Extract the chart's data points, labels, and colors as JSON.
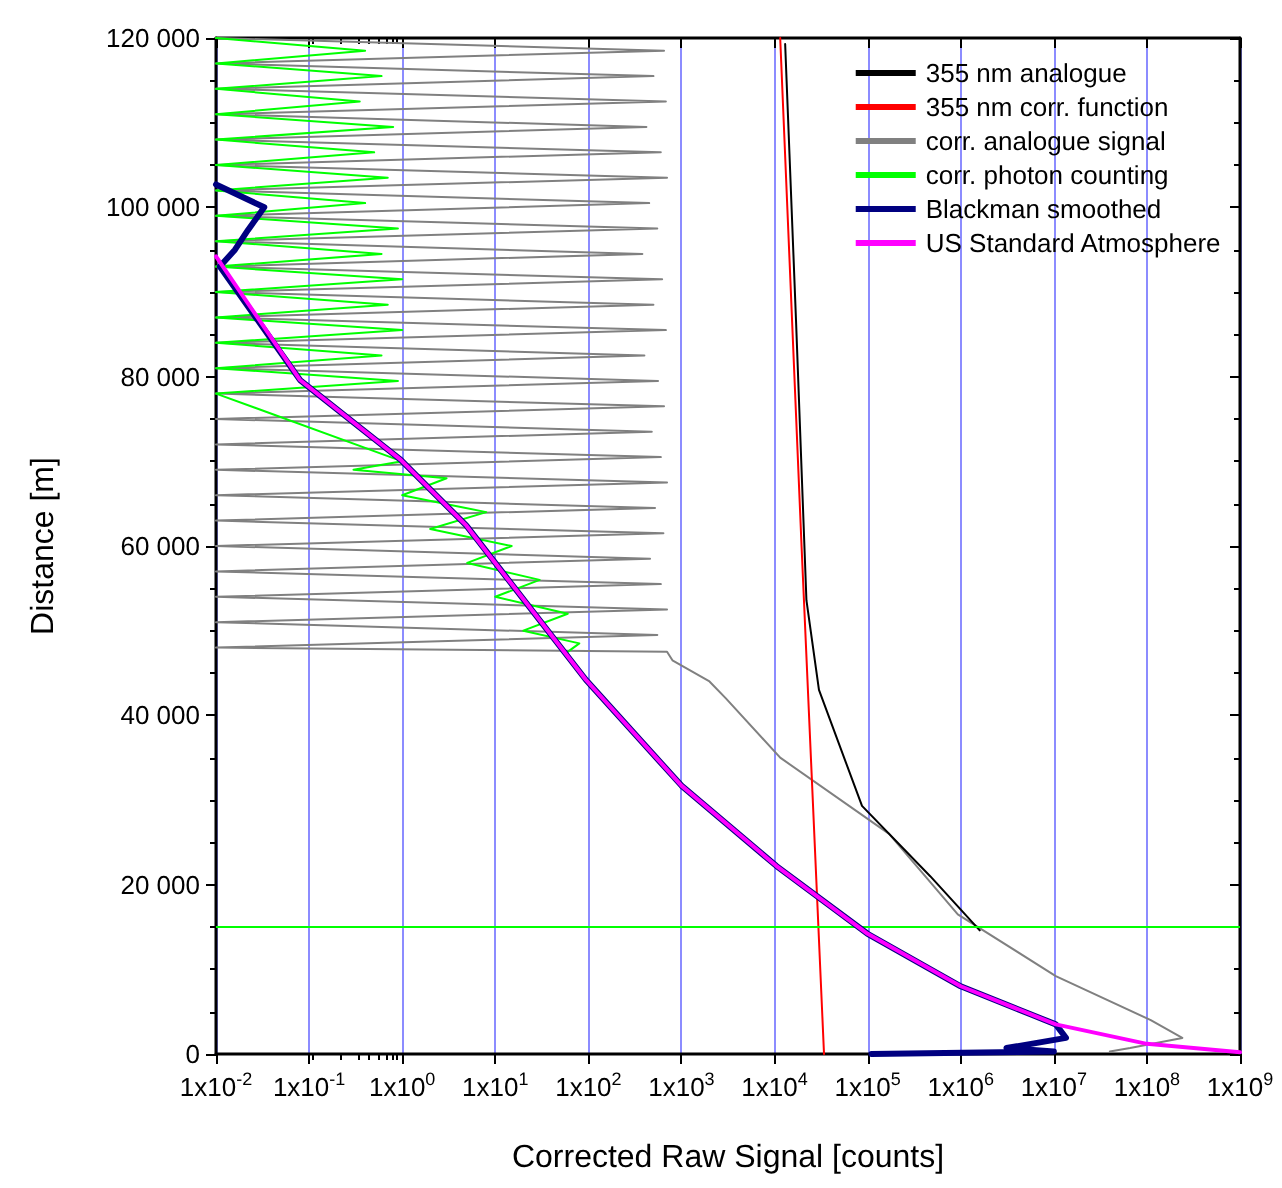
{
  "chart_data": {
    "type": "line",
    "xlabel": "Corrected Raw Signal [counts]",
    "ylabel": "Distance [m]",
    "log": "x",
    "grid": "x",
    "legend": "top right",
    "line_style": "solid",
    "marker": "none",
    "xlim": [
      0.01,
      1000000000
    ],
    "ylim": [
      0,
      120000
    ],
    "xticks": [
      {
        "value": 0.01,
        "label": "1x10$^{-2}$"
      },
      {
        "value": 0.1,
        "label": "1x10$^{-1}$"
      },
      {
        "value": 1,
        "label": "1x10$^{0}$"
      },
      {
        "value": 10,
        "label": "1x10$^{1}$"
      },
      {
        "value": 100,
        "label": "1x10$^{2}$"
      },
      {
        "value": 1000,
        "label": "1x10$^{3}$"
      },
      {
        "value": 10000,
        "label": "1x10$^{4}$"
      },
      {
        "value": 100000,
        "label": "1x10$^{5}$"
      },
      {
        "value": 1000000,
        "label": "1x10$^{6}$"
      },
      {
        "value": 10000000,
        "label": "1x10$^{7}$"
      },
      {
        "value": 100000000,
        "label": "1x10$^{8}$"
      },
      {
        "value": 1000000000,
        "label": "1x10$^{9}$"
      }
    ],
    "yticks": [
      0,
      {
        "value": 20000,
        "label": "20 000"
      },
      {
        "value": 40000,
        "label": "40 000"
      },
      {
        "value": 60000,
        "label": "60 000"
      },
      {
        "value": 80000,
        "label": "80 000"
      },
      {
        "value": 100000,
        "label": "100 000"
      },
      {
        "value": 120000,
        "label": "120 000"
      }
    ],
    "ref_lines": [
      {
        "axis": "y",
        "value": 15000,
        "color": "#00ff00"
      }
    ],
    "series": [
      {
        "name": "355 nm analogue",
        "color": "#000000",
        "x": [
          13000,
          17000,
          22000,
          30000,
          87000,
          470000,
          1600000
        ],
        "values": [
          119300,
          86700,
          53600,
          43000,
          29300,
          21000,
          14600
        ]
      },
      {
        "name": "355 nm corr. function",
        "color": "#ff0000",
        "x": [
          11500,
          19500,
          34000
        ],
        "values": [
          120000,
          60000,
          0
        ]
      },
      {
        "name": "corr. analogue signal",
        "color": "#808080",
        "x": [
          0.01,
          650,
          0.01,
          500,
          0.01,
          680,
          0.01,
          420,
          0.01,
          600,
          0.01,
          700,
          0.01,
          450,
          0.01,
          550,
          0.01,
          380,
          0.01,
          620,
          0.01,
          500,
          0.01,
          680,
          0.01,
          400,
          0.01,
          560,
          0.01,
          650,
          0.01,
          480,
          0.01,
          600,
          0.01,
          700,
          0.01,
          520,
          0.01,
          640,
          0.01,
          460,
          0.01,
          600,
          0.01,
          700,
          0.01,
          550,
          0.01,
          700,
          800,
          2000,
          3000,
          11500,
          170000,
          930000,
          10500000,
          110000000,
          240000000,
          66000000,
          40000000
        ],
        "values": [
          120000,
          118500,
          117000,
          115500,
          114000,
          112500,
          111000,
          109500,
          108000,
          106500,
          105000,
          103500,
          102000,
          100500,
          99000,
          97500,
          96000,
          94500,
          93000,
          91500,
          90000,
          88500,
          87000,
          85500,
          84000,
          82500,
          81000,
          79500,
          78000,
          76500,
          75000,
          73500,
          72000,
          70500,
          69000,
          67500,
          66000,
          64500,
          63000,
          61500,
          60000,
          58500,
          57000,
          55500,
          54000,
          52500,
          51000,
          49500,
          48000,
          47500,
          46500,
          44000,
          42000,
          35000,
          26000,
          16500,
          9200,
          4000,
          1900,
          700,
          300
        ]
      },
      {
        "name": "corr. photon counting",
        "color": "#00ff00",
        "x": [
          0.01,
          0.4,
          0.01,
          0.6,
          0.01,
          0.35,
          0.01,
          0.8,
          0.01,
          0.5,
          0.01,
          0.7,
          0.01,
          0.4,
          0.01,
          0.9,
          0.01,
          0.6,
          0.01,
          1,
          0.01,
          0.7,
          0.01,
          1,
          0.01,
          0.6,
          0.01,
          0.9,
          0.01,
          1,
          0.3,
          3,
          1,
          8,
          2,
          15,
          5,
          30,
          10,
          60,
          20,
          80,
          60
        ],
        "values": [
          120000,
          118500,
          117000,
          115500,
          114000,
          112500,
          111000,
          109500,
          108000,
          106500,
          105000,
          103500,
          102000,
          100500,
          99000,
          97500,
          96000,
          94500,
          93000,
          91500,
          90000,
          88500,
          87000,
          85500,
          84000,
          82500,
          81000,
          79500,
          78000,
          70000,
          69000,
          68000,
          66000,
          64000,
          62000,
          60000,
          58000,
          56000,
          54000,
          52000,
          50000,
          48500,
          47500
        ]
      },
      {
        "name": "Blackman smoothed",
        "color": "#000080",
        "x": [
          0.01,
          0.033,
          0.022,
          0.016,
          0.011,
          0.08,
          0.96,
          4.9,
          94,
          1000,
          10500,
          100000,
          1000000,
          10500000,
          13500000,
          3100000,
          10000000,
          110000
        ],
        "values": [
          102700,
          100000,
          97300,
          95000,
          93000,
          79600,
          70200,
          62400,
          44200,
          31700,
          22200,
          14200,
          8000,
          3500,
          1900,
          700,
          300,
          0
        ]
      },
      {
        "name": "US Standard Atmosphere",
        "color": "#ff00ff",
        "x": [
          0.01,
          0.08,
          0.96,
          4.9,
          94,
          1000,
          10500,
          100000,
          1000000,
          10500000,
          100000000,
          1000000000
        ],
        "values": [
          94200,
          79600,
          70200,
          62400,
          44200,
          31700,
          22200,
          14200,
          8000,
          3500,
          1200,
          200
        ]
      }
    ]
  }
}
